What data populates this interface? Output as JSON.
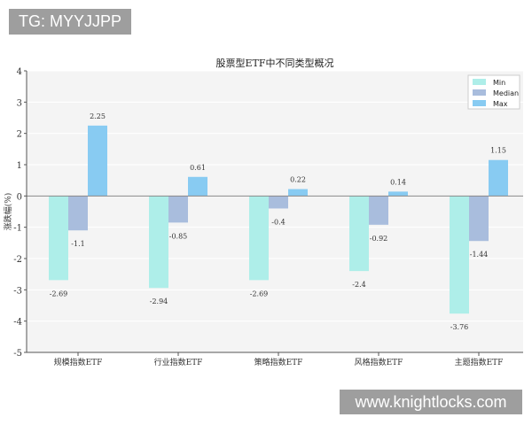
{
  "watermarks": {
    "top_left": "TG: MYYJJPP",
    "bottom_right": "www.knightlocks.com"
  },
  "chart_data": {
    "type": "bar",
    "title": "股票型ETF中不同类型概况",
    "xlabel": "",
    "ylabel": "涨跌幅(%)",
    "ylim": [
      -5,
      4
    ],
    "yticks": [
      4,
      3,
      2,
      1,
      0,
      -1,
      -2,
      -3,
      -4,
      -5
    ],
    "grid": true,
    "legend": "top-right",
    "categories": [
      "规模指数ETF",
      "行业指数ETF",
      "策略指数ETF",
      "风格指数ETF",
      "主题指数ETF"
    ],
    "series": [
      {
        "name": "Min",
        "color": "#aeeee9",
        "values": [
          -2.69,
          -2.94,
          -2.69,
          -2.4,
          -3.76
        ]
      },
      {
        "name": "Median",
        "color": "#a9bddd",
        "values": [
          -1.1,
          -0.85,
          -0.4,
          -0.92,
          -1.44
        ]
      },
      {
        "name": "Max",
        "color": "#88cbf2",
        "values": [
          2.25,
          0.61,
          0.22,
          0.14,
          1.15
        ]
      }
    ]
  }
}
